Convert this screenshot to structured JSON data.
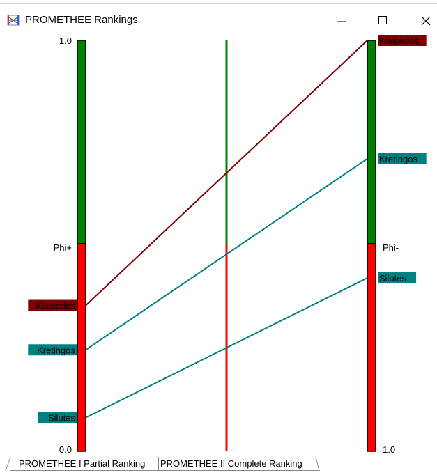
{
  "window": {
    "title": "PROMETHEE Rankings",
    "icon": "promethee-rankings-icon",
    "controls": [
      "minimize-icon",
      "maximize-icon",
      "close-icon"
    ]
  },
  "chart_data": {
    "type": "line",
    "left_axis": {
      "label": "Phi+",
      "top_tick": "1.0",
      "bottom_tick": "0.0"
    },
    "right_axis": {
      "label": "Phi-",
      "top_tick": "",
      "bottom_tick": "1.0"
    },
    "colors": {
      "positive": "#008000",
      "negative": "#ff0000",
      "axis_border": "#000000"
    },
    "alternatives": [
      {
        "name": "Klaipedos",
        "phi_plus": 0.355,
        "phi_minus": 0.0,
        "color": "#800000"
      },
      {
        "name": "Kretingos",
        "phi_plus": 0.247,
        "phi_minus": 0.288,
        "color": "#008080"
      },
      {
        "name": "Silutes",
        "phi_plus": 0.082,
        "phi_minus": 0.578,
        "color": "#008080"
      }
    ]
  },
  "tabs": [
    {
      "label": "PROMETHEE I Partial Ranking",
      "active": true
    },
    {
      "label": "PROMETHEE II Complete Ranking",
      "active": false
    }
  ]
}
